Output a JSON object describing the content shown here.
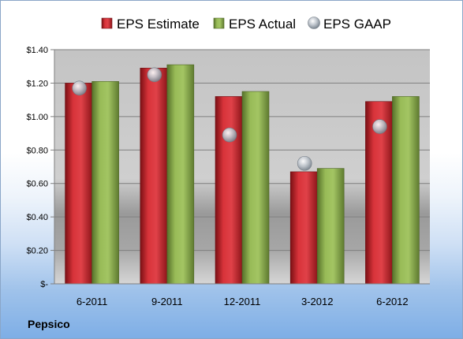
{
  "company": "Pepsico",
  "chart_data": {
    "type": "bar",
    "categories": [
      "6-2011",
      "9-2011",
      "12-2011",
      "3-2012",
      "6-2012"
    ],
    "series": [
      {
        "name": "EPS Estimate",
        "kind": "bar",
        "color": "#c0272d",
        "values": [
          1.2,
          1.29,
          1.12,
          0.67,
          1.09
        ]
      },
      {
        "name": "EPS Actual",
        "kind": "bar",
        "color": "#86a84a",
        "values": [
          1.21,
          1.31,
          1.15,
          0.69,
          1.12
        ]
      },
      {
        "name": "EPS GAAP",
        "kind": "marker",
        "color": "#9aa3ad",
        "values": [
          1.17,
          1.25,
          0.89,
          0.72,
          0.94
        ]
      }
    ],
    "yticks": [
      {
        "value": 0,
        "label": "$-"
      },
      {
        "value": 0.2,
        "label": "$0.20"
      },
      {
        "value": 0.4,
        "label": "$0.40"
      },
      {
        "value": 0.6,
        "label": "$0.60"
      },
      {
        "value": 0.8,
        "label": "$0.80"
      },
      {
        "value": 1.0,
        "label": "$1.00"
      },
      {
        "value": 1.2,
        "label": "$1.20"
      },
      {
        "value": 1.4,
        "label": "$1.40"
      }
    ],
    "ylim": [
      0,
      1.4
    ],
    "grid": true,
    "legend": "top"
  }
}
